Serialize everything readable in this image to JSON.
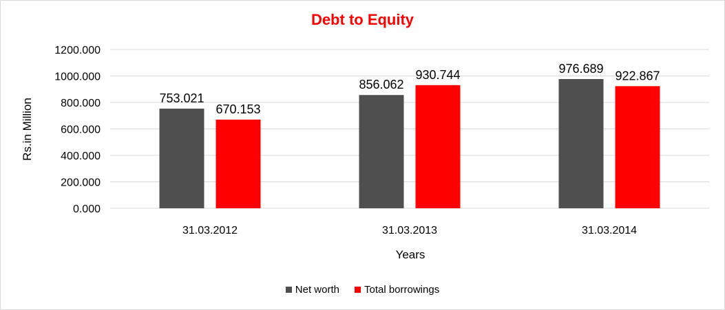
{
  "chart_data": {
    "type": "bar",
    "title": "Debt to Equity",
    "xlabel": "Years",
    "ylabel": "Rs.in Million",
    "categories": [
      "31.03.2012",
      "31.03.2013",
      "31.03.2014"
    ],
    "series": [
      {
        "name": "Net worth",
        "values": [
          753.021,
          856.062,
          976.689
        ],
        "color": "#4f4f4f",
        "labels": [
          "753.021",
          "856.062",
          "976.689"
        ]
      },
      {
        "name": "Total borrowings",
        "values": [
          670.153,
          930.744,
          922.867
        ],
        "color": "#ff0000",
        "labels": [
          "670.153",
          "930.744",
          "922.867"
        ]
      }
    ],
    "ylim": [
      0,
      1200
    ],
    "yticks": [
      0,
      200,
      400,
      600,
      800,
      1000,
      1200
    ],
    "ytick_labels": [
      "0.000",
      "200.000",
      "400.000",
      "600.000",
      "800.000",
      "1000.000",
      "1200.000"
    ],
    "grid": true,
    "legend_position": "bottom"
  }
}
